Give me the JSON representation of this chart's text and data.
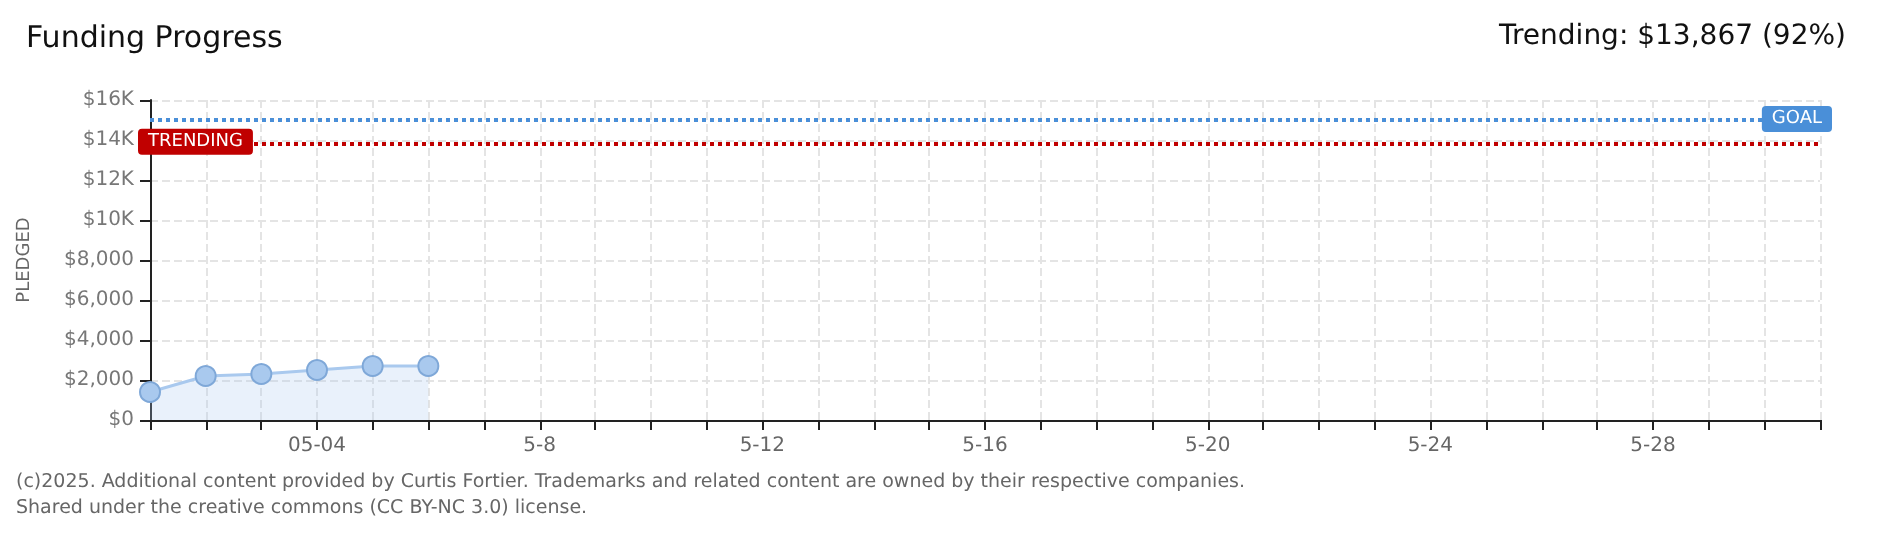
{
  "chart_data": {
    "type": "area",
    "title": "Funding Progress",
    "subtitle": "Trending: $13,867 (92%)",
    "ylabel": "PLEDGED",
    "categories": [
      null,
      null,
      null,
      "05-04",
      null,
      null,
      null,
      "5-8",
      null,
      null,
      null,
      "5-12",
      null,
      null,
      null,
      "5-16",
      null,
      null,
      null,
      "5-20",
      null,
      null,
      null,
      "5-24",
      null,
      null,
      null,
      "5-28",
      null,
      null,
      null
    ],
    "series": [
      {
        "color": "#a9c9ee",
        "values": [
          1400,
          2200,
          2300,
          2500,
          2700,
          2700,
          null,
          null,
          null,
          null,
          null,
          null,
          null,
          null,
          null,
          null,
          null,
          null,
          null,
          null,
          null,
          null,
          null,
          null,
          null,
          null,
          null,
          null,
          null,
          null,
          null
        ]
      }
    ],
    "ylim": [
      0,
      16000
    ],
    "yticks": [
      {
        "value": 0,
        "label": "$0"
      },
      {
        "value": 2000,
        "label": "$2,000"
      },
      {
        "value": 4000,
        "label": "$4,000"
      },
      {
        "value": 6000,
        "label": "$6,000"
      },
      {
        "value": 8000,
        "label": "$8,000"
      },
      {
        "value": 10000,
        "label": "$10K"
      },
      {
        "value": 12000,
        "label": "$12K"
      },
      {
        "value": 14000,
        "label": "$14K"
      },
      {
        "value": 16000,
        "label": "$16K"
      }
    ],
    "ref_lines": [
      {
        "axis": "y",
        "value": 15000,
        "label": "GOAL",
        "color": "#4a8fd8",
        "line_style": "dotted"
      },
      {
        "axis": "y",
        "value": 13867,
        "label": "TRENDING",
        "color": "#c00000",
        "line_style": "dotted"
      }
    ],
    "annotations": [
      "(c)2025. Additional content provided by Curtis Fortier. Trademarks and related content are owned by their respective companies.",
      "Shared under the creative commons (CC BY-NC 3.0) license."
    ],
    "grid": true,
    "marker": "circle",
    "line_style": "solid"
  }
}
